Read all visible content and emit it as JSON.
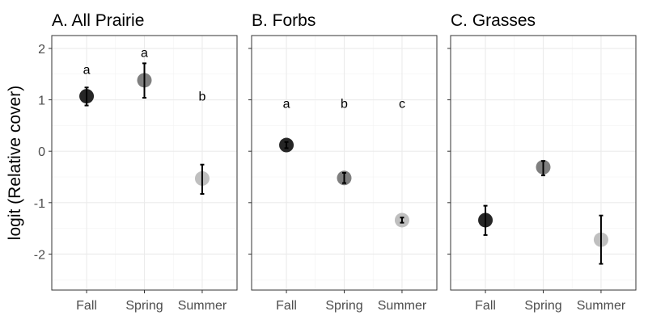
{
  "chart_data": {
    "type": "scatter",
    "ylabel": "logit (Relative cover)",
    "ylim": [
      -2.7,
      2.25
    ],
    "yticks": [
      2,
      1,
      0,
      -1,
      -2
    ],
    "ytick_labels": [
      "2",
      "1",
      "0",
      "-1",
      "-2"
    ],
    "categories": [
      "Fall",
      "Spring",
      "Summer"
    ],
    "grid": true,
    "panels": [
      {
        "title": "A. All Prairie",
        "points": [
          {
            "x": "Fall",
            "y": 1.07,
            "lo": 0.89,
            "hi": 1.24,
            "label": "a",
            "label_y": 1.6,
            "color": "#262626"
          },
          {
            "x": "Spring",
            "y": 1.38,
            "lo": 1.04,
            "hi": 1.71,
            "label": "a",
            "label_y": 1.93,
            "color": "#7f7f7f"
          },
          {
            "x": "Summer",
            "y": -0.53,
            "lo": -0.83,
            "hi": -0.26,
            "label": "b",
            "label_y": 1.08,
            "color": "#bfbfbf"
          }
        ]
      },
      {
        "title": "B. Forbs",
        "points": [
          {
            "x": "Fall",
            "y": 0.12,
            "lo": 0.06,
            "hi": 0.18,
            "label": "a",
            "label_y": 0.94,
            "color": "#262626"
          },
          {
            "x": "Spring",
            "y": -0.52,
            "lo": -0.62,
            "hi": -0.42,
            "label": "b",
            "label_y": 0.94,
            "color": "#7f7f7f"
          },
          {
            "x": "Summer",
            "y": -1.34,
            "lo": -1.39,
            "hi": -1.29,
            "label": "c",
            "label_y": 0.94,
            "color": "#bfbfbf"
          }
        ]
      },
      {
        "title": "C. Grasses",
        "points": [
          {
            "x": "Fall",
            "y": -1.34,
            "lo": -1.63,
            "hi": -1.06,
            "label": "",
            "label_y": 0,
            "color": "#262626"
          },
          {
            "x": "Spring",
            "y": -0.31,
            "lo": -0.47,
            "hi": -0.19,
            "label": "",
            "label_y": 0,
            "color": "#7f7f7f"
          },
          {
            "x": "Summer",
            "y": -1.72,
            "lo": -2.19,
            "hi": -1.25,
            "label": "",
            "label_y": 0,
            "color": "#bfbfbf"
          }
        ]
      }
    ]
  }
}
